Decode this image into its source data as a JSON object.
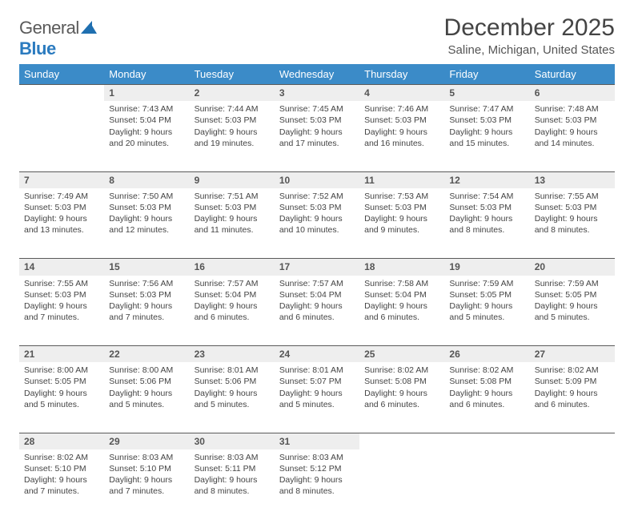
{
  "brand": {
    "name_a": "General",
    "name_b": "Blue"
  },
  "title": "December 2025",
  "location": "Saline, Michigan, United States",
  "colors": {
    "header_bg": "#3b8bc8",
    "header_text": "#ffffff",
    "daynum_bg": "#eeeeee",
    "rule": "#5a5a5a",
    "text": "#444444",
    "brand_gray": "#5a5a5a",
    "brand_blue": "#2b7bbf"
  },
  "day_labels": [
    "Sunday",
    "Monday",
    "Tuesday",
    "Wednesday",
    "Thursday",
    "Friday",
    "Saturday"
  ],
  "first_weekday": 1,
  "days": [
    {
      "n": 1,
      "sunrise": "7:43 AM",
      "sunset": "5:04 PM",
      "daylight": "9 hours and 20 minutes."
    },
    {
      "n": 2,
      "sunrise": "7:44 AM",
      "sunset": "5:03 PM",
      "daylight": "9 hours and 19 minutes."
    },
    {
      "n": 3,
      "sunrise": "7:45 AM",
      "sunset": "5:03 PM",
      "daylight": "9 hours and 17 minutes."
    },
    {
      "n": 4,
      "sunrise": "7:46 AM",
      "sunset": "5:03 PM",
      "daylight": "9 hours and 16 minutes."
    },
    {
      "n": 5,
      "sunrise": "7:47 AM",
      "sunset": "5:03 PM",
      "daylight": "9 hours and 15 minutes."
    },
    {
      "n": 6,
      "sunrise": "7:48 AM",
      "sunset": "5:03 PM",
      "daylight": "9 hours and 14 minutes."
    },
    {
      "n": 7,
      "sunrise": "7:49 AM",
      "sunset": "5:03 PM",
      "daylight": "9 hours and 13 minutes."
    },
    {
      "n": 8,
      "sunrise": "7:50 AM",
      "sunset": "5:03 PM",
      "daylight": "9 hours and 12 minutes."
    },
    {
      "n": 9,
      "sunrise": "7:51 AM",
      "sunset": "5:03 PM",
      "daylight": "9 hours and 11 minutes."
    },
    {
      "n": 10,
      "sunrise": "7:52 AM",
      "sunset": "5:03 PM",
      "daylight": "9 hours and 10 minutes."
    },
    {
      "n": 11,
      "sunrise": "7:53 AM",
      "sunset": "5:03 PM",
      "daylight": "9 hours and 9 minutes."
    },
    {
      "n": 12,
      "sunrise": "7:54 AM",
      "sunset": "5:03 PM",
      "daylight": "9 hours and 8 minutes."
    },
    {
      "n": 13,
      "sunrise": "7:55 AM",
      "sunset": "5:03 PM",
      "daylight": "9 hours and 8 minutes."
    },
    {
      "n": 14,
      "sunrise": "7:55 AM",
      "sunset": "5:03 PM",
      "daylight": "9 hours and 7 minutes."
    },
    {
      "n": 15,
      "sunrise": "7:56 AM",
      "sunset": "5:03 PM",
      "daylight": "9 hours and 7 minutes."
    },
    {
      "n": 16,
      "sunrise": "7:57 AM",
      "sunset": "5:04 PM",
      "daylight": "9 hours and 6 minutes."
    },
    {
      "n": 17,
      "sunrise": "7:57 AM",
      "sunset": "5:04 PM",
      "daylight": "9 hours and 6 minutes."
    },
    {
      "n": 18,
      "sunrise": "7:58 AM",
      "sunset": "5:04 PM",
      "daylight": "9 hours and 6 minutes."
    },
    {
      "n": 19,
      "sunrise": "7:59 AM",
      "sunset": "5:05 PM",
      "daylight": "9 hours and 5 minutes."
    },
    {
      "n": 20,
      "sunrise": "7:59 AM",
      "sunset": "5:05 PM",
      "daylight": "9 hours and 5 minutes."
    },
    {
      "n": 21,
      "sunrise": "8:00 AM",
      "sunset": "5:05 PM",
      "daylight": "9 hours and 5 minutes."
    },
    {
      "n": 22,
      "sunrise": "8:00 AM",
      "sunset": "5:06 PM",
      "daylight": "9 hours and 5 minutes."
    },
    {
      "n": 23,
      "sunrise": "8:01 AM",
      "sunset": "5:06 PM",
      "daylight": "9 hours and 5 minutes."
    },
    {
      "n": 24,
      "sunrise": "8:01 AM",
      "sunset": "5:07 PM",
      "daylight": "9 hours and 5 minutes."
    },
    {
      "n": 25,
      "sunrise": "8:02 AM",
      "sunset": "5:08 PM",
      "daylight": "9 hours and 6 minutes."
    },
    {
      "n": 26,
      "sunrise": "8:02 AM",
      "sunset": "5:08 PM",
      "daylight": "9 hours and 6 minutes."
    },
    {
      "n": 27,
      "sunrise": "8:02 AM",
      "sunset": "5:09 PM",
      "daylight": "9 hours and 6 minutes."
    },
    {
      "n": 28,
      "sunrise": "8:02 AM",
      "sunset": "5:10 PM",
      "daylight": "9 hours and 7 minutes."
    },
    {
      "n": 29,
      "sunrise": "8:03 AM",
      "sunset": "5:10 PM",
      "daylight": "9 hours and 7 minutes."
    },
    {
      "n": 30,
      "sunrise": "8:03 AM",
      "sunset": "5:11 PM",
      "daylight": "9 hours and 8 minutes."
    },
    {
      "n": 31,
      "sunrise": "8:03 AM",
      "sunset": "5:12 PM",
      "daylight": "9 hours and 8 minutes."
    }
  ],
  "labels": {
    "sunrise": "Sunrise:",
    "sunset": "Sunset:",
    "daylight": "Daylight:"
  }
}
